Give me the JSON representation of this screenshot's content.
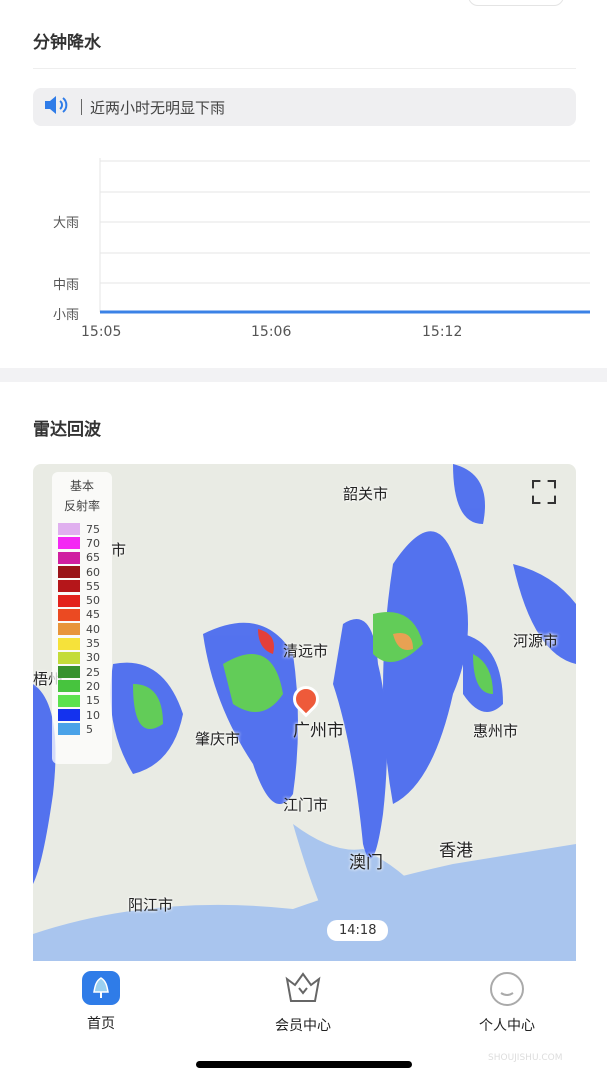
{
  "minute_precip": {
    "title": "分钟降水",
    "notice": "近两小时无明显下雨",
    "icon": "speaker-icon",
    "chart": {
      "y_labels": [
        "大雨",
        "中雨",
        "小雨"
      ],
      "x_labels": [
        "15:05",
        "15:06",
        "15:12"
      ]
    }
  },
  "radar": {
    "title": "雷达回波",
    "legend": {
      "title_line1": "基本",
      "title_line2": "反射率",
      "levels": [
        {
          "v": "75",
          "c": "#e0b0ef"
        },
        {
          "v": "70",
          "c": "#f428f4"
        },
        {
          "v": "65",
          "c": "#d01ea0"
        },
        {
          "v": "60",
          "c": "#9a1418"
        },
        {
          "v": "55",
          "c": "#b5161a"
        },
        {
          "v": "50",
          "c": "#e3221c"
        },
        {
          "v": "45",
          "c": "#eb4a22"
        },
        {
          "v": "40",
          "c": "#e8953a"
        },
        {
          "v": "35",
          "c": "#f6e23a"
        },
        {
          "v": "30",
          "c": "#c4dc3a"
        },
        {
          "v": "25",
          "c": "#37922e"
        },
        {
          "v": "20",
          "c": "#47c43e"
        },
        {
          "v": "15",
          "c": "#5ce24e"
        },
        {
          "v": "10",
          "c": "#1432ee"
        },
        {
          "v": "5",
          "c": "#4aa2e8"
        }
      ]
    },
    "cities": [
      "韶关市",
      "清远市",
      "广州市",
      "肇庆市",
      "惠州市",
      "河源市",
      "江门市",
      "澳门",
      "香港",
      "阳江市",
      "市",
      "梧州"
    ],
    "time": "14:18"
  },
  "nav": {
    "items": [
      {
        "label": "首页",
        "icon": "bell-icon"
      },
      {
        "label": "会员中心",
        "icon": "crown-icon"
      },
      {
        "label": "个人中心",
        "icon": "smile-icon"
      }
    ]
  },
  "watermark": "SHOUJISHU.COM"
}
